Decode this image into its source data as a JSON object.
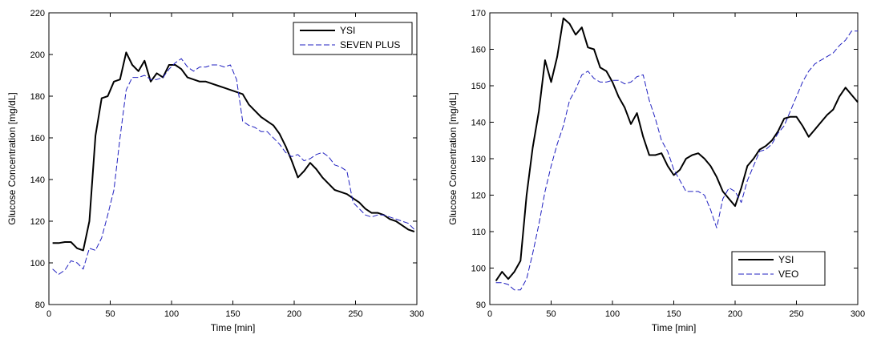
{
  "chart_data": [
    {
      "type": "line",
      "title": "",
      "xlabel": "Time [min]",
      "ylabel": "Glucose Concentration [mg/dL]",
      "xlim": [
        0,
        300
      ],
      "ylim": [
        80,
        220
      ],
      "xticks": [
        "0",
        "50",
        "100",
        "150",
        "200",
        "250",
        "300"
      ],
      "yticks": [
        "80",
        "100",
        "120",
        "140",
        "160",
        "180",
        "200",
        "220"
      ],
      "grid": false,
      "legend": "top-right",
      "series": [
        {
          "name": "YSI",
          "color": "#000000",
          "style": "solid",
          "x": [
            3,
            8,
            13,
            18,
            23,
            28,
            33,
            38,
            43,
            48,
            53,
            58,
            63,
            68,
            73,
            78,
            83,
            88,
            93,
            98,
            103,
            108,
            113,
            118,
            123,
            128,
            133,
            138,
            143,
            148,
            153,
            158,
            163,
            168,
            173,
            178,
            183,
            188,
            193,
            198,
            203,
            208,
            213,
            218,
            223,
            228,
            233,
            238,
            243,
            248,
            253,
            258,
            263,
            268,
            273,
            278,
            283,
            288,
            293,
            298
          ],
          "values": [
            109.5,
            109.5,
            110,
            110,
            107,
            106,
            120,
            161,
            179,
            180,
            187,
            188,
            201,
            195,
            192,
            197,
            187,
            191,
            189,
            195,
            195,
            193,
            189,
            188,
            187,
            187,
            186,
            185,
            184,
            183,
            182,
            181,
            176,
            173,
            170,
            168,
            166,
            162,
            156,
            149,
            141,
            144,
            148,
            145,
            141,
            138,
            135,
            134,
            133,
            131,
            129,
            126,
            124,
            124,
            123,
            121,
            120,
            118,
            116,
            115
          ]
        },
        {
          "name": "SEVEN PLUS",
          "color": "#2020c0",
          "style": "dashed",
          "x": [
            3,
            8,
            13,
            18,
            23,
            28,
            33,
            38,
            43,
            48,
            53,
            58,
            63,
            68,
            73,
            78,
            83,
            88,
            93,
            98,
            103,
            108,
            113,
            118,
            123,
            128,
            133,
            138,
            143,
            148,
            153,
            158,
            163,
            168,
            173,
            178,
            183,
            188,
            193,
            198,
            203,
            208,
            213,
            218,
            223,
            228,
            233,
            238,
            243,
            248,
            253,
            258,
            263,
            268,
            273,
            278,
            283,
            288,
            293,
            298
          ],
          "values": [
            97,
            94.5,
            96.5,
            101,
            100,
            97,
            107,
            106,
            112,
            123,
            135,
            160,
            183,
            189,
            189,
            190,
            188,
            188,
            189,
            193,
            196,
            198,
            194,
            192,
            194,
            194,
            195,
            195,
            194,
            195,
            188,
            168,
            166,
            165,
            163,
            163,
            160,
            157,
            153,
            151,
            152,
            149,
            150,
            152,
            153,
            151,
            147,
            146,
            144,
            129,
            126,
            123,
            122,
            123,
            123,
            122,
            121,
            120,
            119,
            116
          ]
        }
      ]
    },
    {
      "type": "line",
      "title": "",
      "xlabel": "Time [min]",
      "ylabel": "Glucose Concentration [mg/dL]",
      "xlim": [
        0,
        300
      ],
      "ylim": [
        90,
        170
      ],
      "xticks": [
        "0",
        "50",
        "100",
        "150",
        "200",
        "250",
        "300"
      ],
      "yticks": [
        "90",
        "100",
        "110",
        "120",
        "130",
        "140",
        "150",
        "160",
        "170"
      ],
      "grid": false,
      "legend": "bottom-right",
      "series": [
        {
          "name": "YSI",
          "color": "#000000",
          "style": "solid",
          "x": [
            5,
            10,
            15,
            20,
            25,
            30,
            35,
            40,
            45,
            50,
            55,
            60,
            65,
            70,
            75,
            80,
            85,
            90,
            95,
            100,
            105,
            110,
            115,
            120,
            125,
            130,
            135,
            140,
            145,
            150,
            155,
            160,
            165,
            170,
            175,
            180,
            185,
            190,
            195,
            200,
            205,
            210,
            215,
            220,
            225,
            230,
            235,
            240,
            245,
            250,
            255,
            260,
            265,
            270,
            275,
            280,
            285,
            290,
            295,
            300
          ],
          "values": [
            96.5,
            99,
            97,
            99,
            102,
            120,
            133,
            143,
            157,
            151,
            158,
            168.5,
            167,
            164,
            166,
            160.5,
            160,
            155,
            154,
            151,
            147,
            144,
            139.5,
            142.5,
            136,
            131,
            131,
            131.5,
            128,
            125.5,
            127,
            130,
            131,
            131.5,
            130,
            128,
            125,
            121,
            119,
            117,
            122,
            128,
            130,
            132.5,
            133.5,
            135,
            137.5,
            141,
            141.5,
            141.5,
            139,
            136,
            138,
            140,
            142,
            143.5,
            147,
            149.5,
            147.5,
            145.5
          ]
        },
        {
          "name": "VEO",
          "color": "#2020c0",
          "style": "dashed",
          "x": [
            5,
            10,
            15,
            20,
            25,
            30,
            35,
            40,
            45,
            50,
            55,
            60,
            65,
            70,
            75,
            80,
            85,
            90,
            95,
            100,
            105,
            110,
            115,
            120,
            125,
            130,
            135,
            140,
            145,
            150,
            155,
            160,
            165,
            170,
            175,
            180,
            185,
            190,
            195,
            200,
            205,
            210,
            215,
            220,
            225,
            230,
            235,
            240,
            245,
            250,
            255,
            260,
            265,
            270,
            275,
            280,
            285,
            290,
            295,
            300
          ],
          "values": [
            96,
            96,
            95.5,
            94,
            94,
            97,
            104,
            112,
            121,
            128,
            134,
            139,
            146,
            149,
            153,
            154,
            152,
            151,
            151,
            151.5,
            151.5,
            150.5,
            151,
            152.5,
            153,
            146,
            141,
            135,
            132,
            127,
            124,
            121,
            121,
            121,
            120,
            116,
            111,
            119,
            122,
            121,
            118,
            124,
            128,
            132,
            132.5,
            134,
            137,
            139,
            143,
            147,
            151,
            154,
            156,
            157,
            158,
            159,
            161,
            162.5,
            165,
            165
          ]
        }
      ]
    }
  ]
}
